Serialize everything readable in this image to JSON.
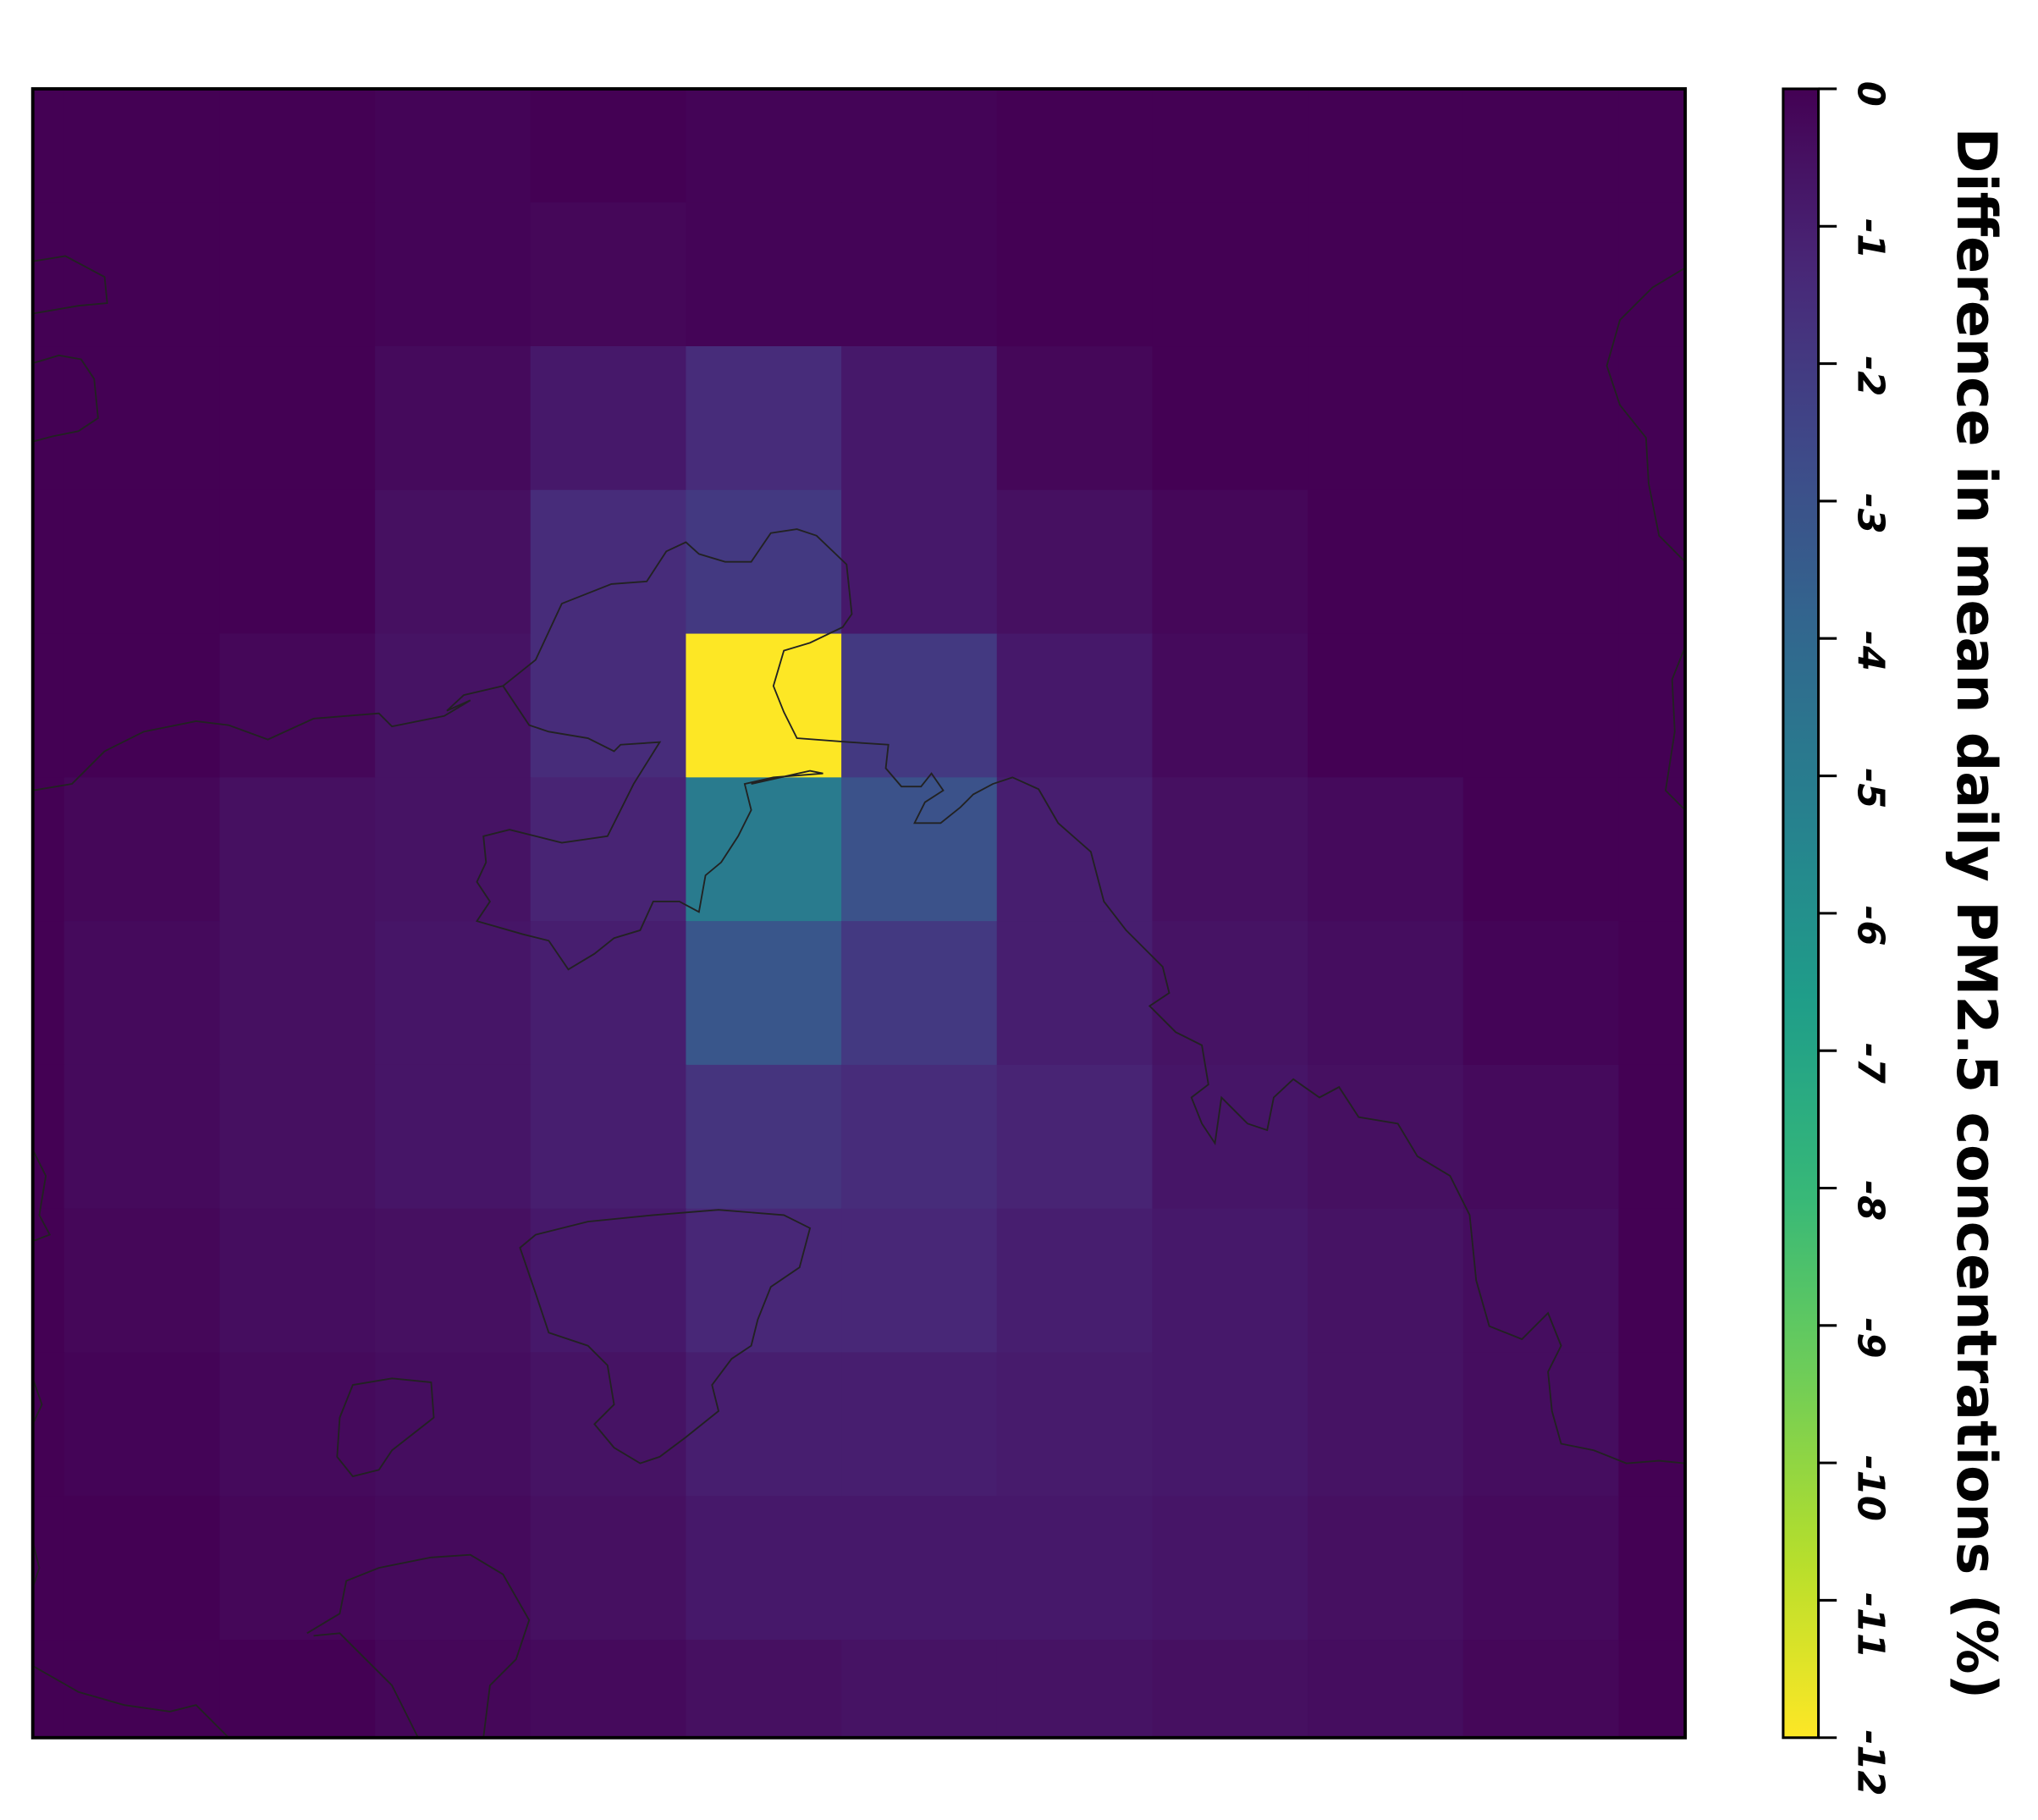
{
  "chart_data": {
    "type": "heatmap",
    "colormap": "viridis_r",
    "colorbar_label": "Difference in mean daily PM2.5 concentrations (%)",
    "zlim": [
      -12,
      0
    ],
    "zticks": [
      0,
      -1,
      -2,
      -3,
      -4,
      -5,
      -6,
      -7,
      -8,
      -9,
      -10,
      -11,
      -12
    ],
    "values": [
      [
        0,
        0,
        0,
        -0.1,
        0,
        -0.1,
        -0.1,
        0,
        0,
        0,
        0,
        0
      ],
      [
        0,
        0,
        0,
        -0.1,
        -0.2,
        -0.1,
        -0.1,
        0,
        0,
        0,
        0,
        0
      ],
      [
        0,
        0,
        0,
        -0.3,
        -0.8,
        -1.5,
        -0.8,
        -0.2,
        0,
        0,
        0,
        0
      ],
      [
        0,
        0,
        0,
        -0.5,
        -1.5,
        -2.0,
        -0.8,
        -0.5,
        -0.2,
        0,
        0,
        0
      ],
      [
        0,
        0,
        -0.2,
        -0.6,
        -1.5,
        -12,
        -2.0,
        -0.8,
        -0.3,
        0,
        0,
        0
      ],
      [
        0,
        -0.2,
        -0.5,
        -0.6,
        -1.2,
        -5.0,
        -3.0,
        -1.0,
        -0.5,
        -0.3,
        0,
        0
      ],
      [
        0,
        -0.3,
        -0.5,
        -0.7,
        -1.0,
        -3.2,
        -2.0,
        -1.0,
        -0.6,
        -0.4,
        -0.1,
        0
      ],
      [
        0,
        -0.3,
        -0.5,
        -0.7,
        -1.0,
        -1.8,
        -1.5,
        -1.2,
        -0.7,
        -0.5,
        -0.3,
        0
      ],
      [
        0,
        -0.2,
        -0.4,
        -0.5,
        -0.8,
        -1.3,
        -1.3,
        -1.0,
        -0.8,
        -0.6,
        -0.4,
        0
      ],
      [
        0,
        -0.1,
        -0.3,
        -0.4,
        -0.6,
        -1.0,
        -1.0,
        -0.9,
        -0.8,
        -0.6,
        -0.4,
        0
      ],
      [
        0,
        0,
        -0.2,
        -0.3,
        -0.5,
        -0.8,
        -0.8,
        -0.8,
        -0.7,
        -0.5,
        -0.3,
        0
      ],
      [
        0,
        0,
        0,
        -0.2,
        -0.3,
        -0.5,
        -0.6,
        -0.6,
        -0.5,
        -0.4,
        -0.2,
        0
      ]
    ]
  }
}
